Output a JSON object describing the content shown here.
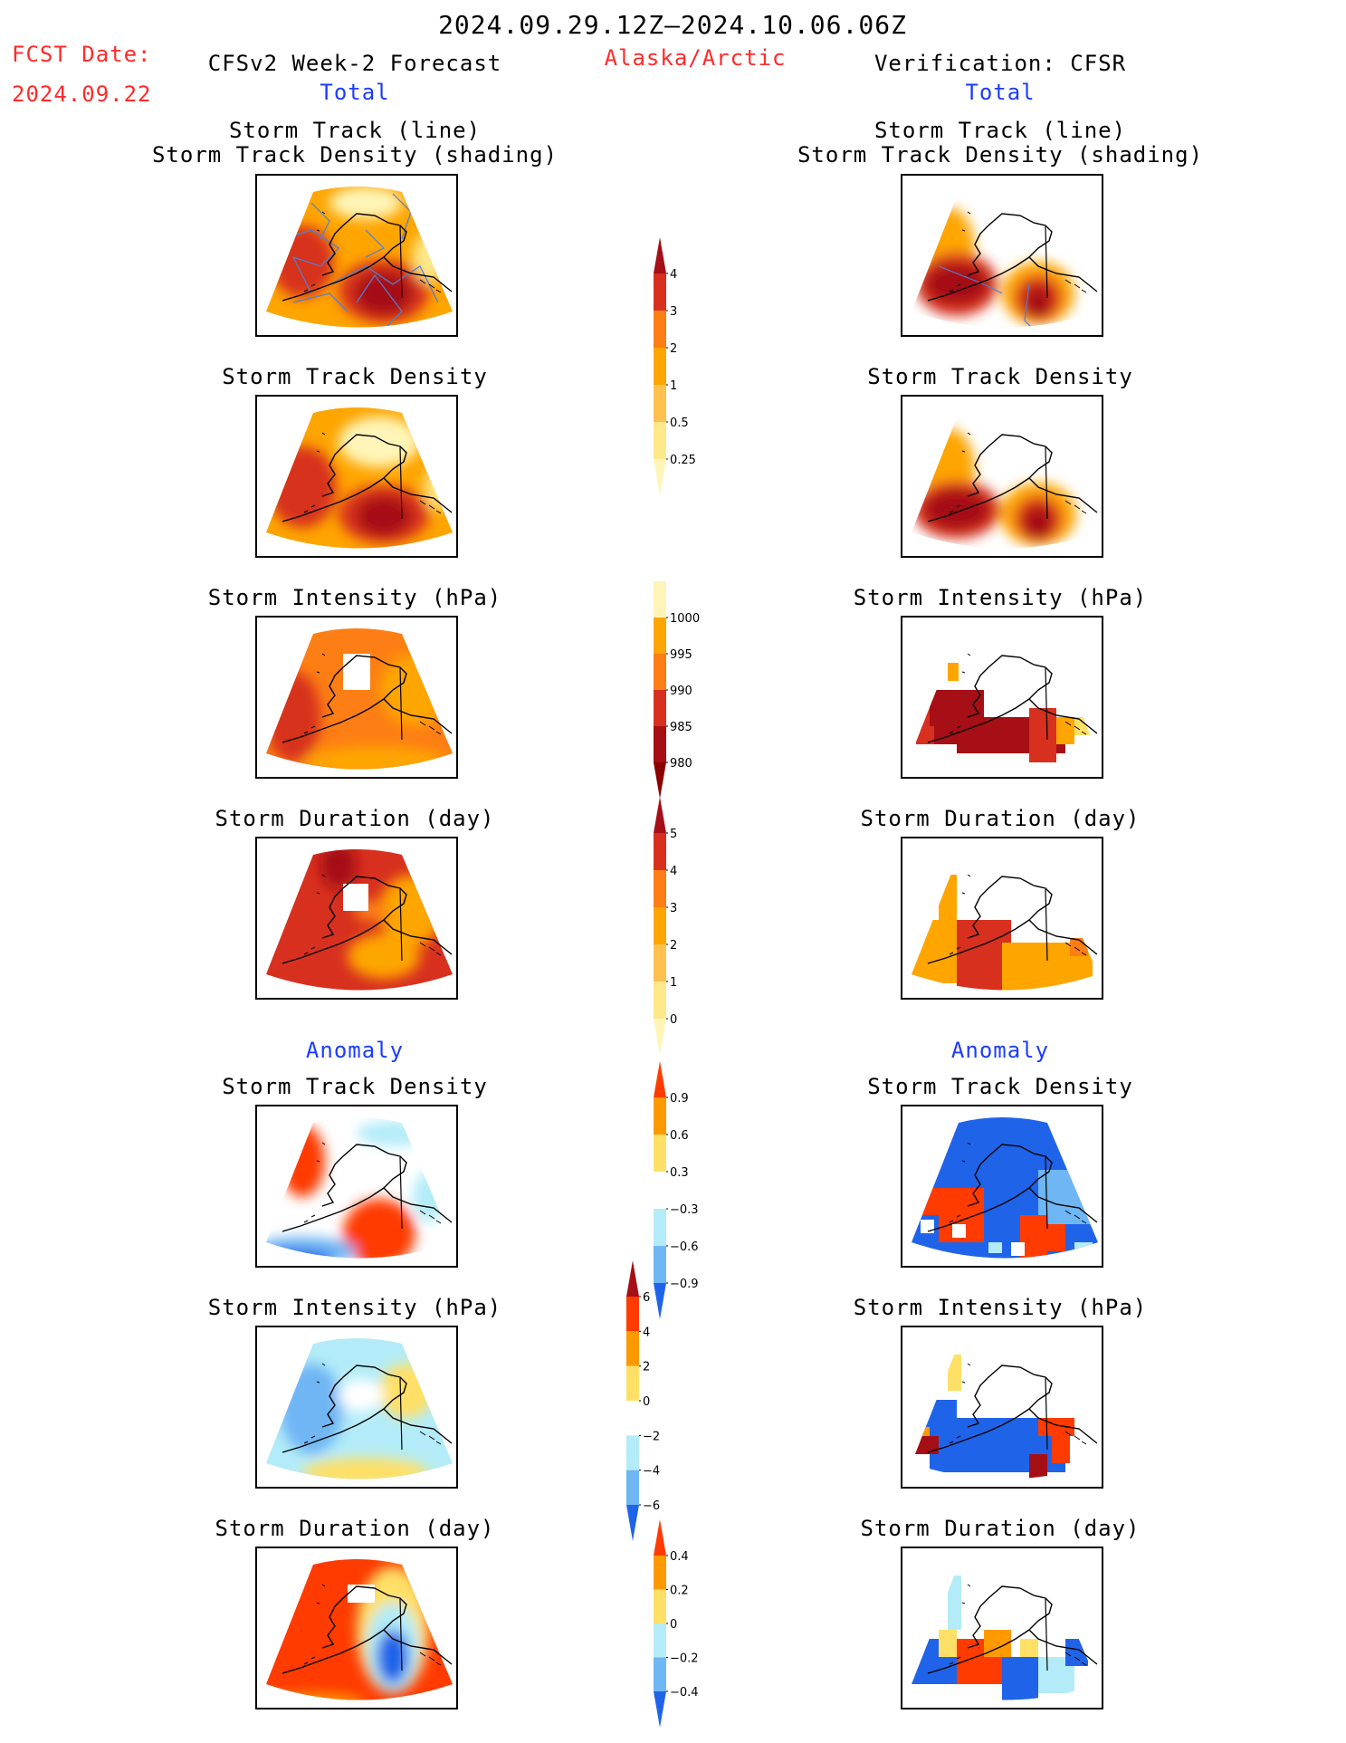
{
  "header": {
    "date_range": "2024.09.29.12Z–2024.10.06.06Z",
    "fcst_label": "FCST Date:",
    "fcst_date": "2024.09.22",
    "left_title": "CFSv2 Week-2 Forecast",
    "region": "Alaska/Arctic",
    "right_title": "Verification: CFSR"
  },
  "sections": {
    "total": "Total",
    "anomaly": "Anomaly"
  },
  "panel_titles": {
    "track_line_1": "Storm Track (line)",
    "track_line_2": "Storm Track Density (shading)",
    "density": "Storm Track Density",
    "intensity": "Storm Intensity (hPa)",
    "duration": "Storm Duration (day)"
  },
  "colorbars": {
    "density_total": {
      "labels": [
        "4",
        "3",
        "2",
        "1",
        "0.5",
        "0.25"
      ],
      "colors": [
        "#a50f15",
        "#d7301f",
        "#fd7e14",
        "#ffa500",
        "#ffc14d",
        "#ffe88a",
        "#fff5b8"
      ]
    },
    "intensity_total": {
      "labels": [
        "1000",
        "995",
        "990",
        "985",
        "980"
      ],
      "colors": [
        "#fff5b8",
        "#ffa500",
        "#fd7e14",
        "#d7301f",
        "#a50f15",
        "#8b0000"
      ]
    },
    "duration_total": {
      "labels": [
        "5",
        "4",
        "3",
        "2",
        "1",
        "0"
      ],
      "colors": [
        "#a50f15",
        "#d7301f",
        "#fd7e14",
        "#ffa500",
        "#ffc14d",
        "#ffe88a",
        "#fff5b8"
      ]
    },
    "density_anom": {
      "labels": [
        "0.9",
        "0.6",
        "0.3",
        "−0.3",
        "−0.6",
        "−0.9"
      ],
      "colors": [
        "#ff3b00",
        "#ff9900",
        "#ffe066",
        "#ffffff",
        "#b3ecf8",
        "#6fb6f4",
        "#1f64e8"
      ]
    },
    "intensity_anom": {
      "labels": [
        "6",
        "4",
        "2",
        "0",
        "−2",
        "−4",
        "−6"
      ],
      "colors": [
        "#a50f15",
        "#ff3b00",
        "#ff9900",
        "#ffe066",
        "#ffffff",
        "#b3ecf8",
        "#6fb6f4",
        "#1f64e8"
      ]
    },
    "duration_anom": {
      "labels": [
        "0.4",
        "0.2",
        "0",
        "−0.2",
        "−0.4"
      ],
      "colors": [
        "#ff3b00",
        "#ff9900",
        "#ffe066",
        "#b3ecf8",
        "#6fb6f4",
        "#1f64e8"
      ]
    }
  },
  "colors": {
    "title_red": "#ff2a2a",
    "section_blue": "#1c3cff",
    "track_line": "#4f7fd6"
  }
}
